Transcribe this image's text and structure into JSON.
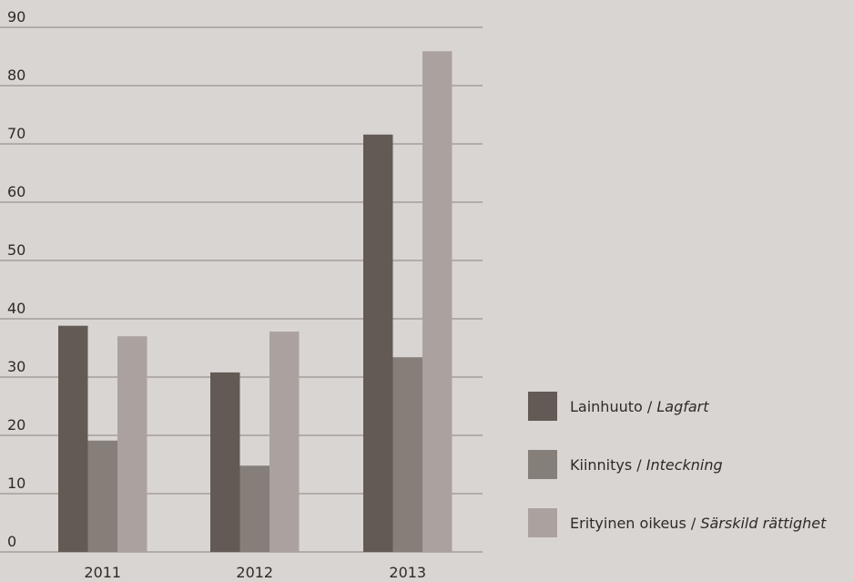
{
  "chart_data": {
    "type": "bar",
    "categories": [
      "2011",
      "2012",
      "2013"
    ],
    "series": [
      {
        "name": "Lainhuuto / Lagfart",
        "color": "#635a55",
        "values": [
          38.8,
          30.8,
          71.6
        ]
      },
      {
        "name": "Kiinnitys / Inteckning",
        "color": "#857e79",
        "values": [
          19.1,
          14.8,
          33.4
        ]
      },
      {
        "name": "Erityinen oikeus / Särskild rättighet",
        "color": "#aba29f",
        "values": [
          37.0,
          37.8,
          85.9
        ]
      }
    ],
    "ylim": [
      0,
      90
    ],
    "yticks": [
      0,
      10,
      20,
      30,
      40,
      50,
      60,
      70,
      80,
      90
    ],
    "grid": true,
    "legend": "right"
  }
}
